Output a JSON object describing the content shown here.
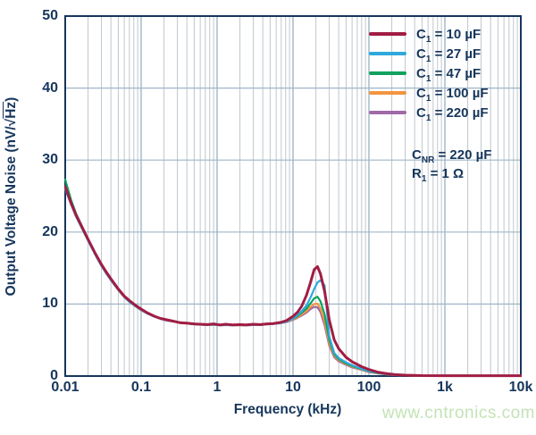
{
  "colors": {
    "text_navy": "#16365c",
    "grid_minor": "#bfc7ce",
    "grid_major": "#9fb6c8",
    "watermark_green": "#c3e3b5"
  },
  "ylabel": {
    "prefix": "Output Voltage Noise (nV/",
    "radical": "√",
    "overline": "Hz",
    "suffix": ")"
  },
  "xlabel": "Frequency (kHz)",
  "watermark": "www.cntronics.com",
  "annotation": {
    "lines": [
      {
        "base": "C",
        "sub": "NR",
        "rest": "= 220 µF"
      },
      {
        "base": "R",
        "sub": "1",
        "rest": "= 1 Ω"
      }
    ]
  },
  "chart_data": {
    "type": "line",
    "title": "",
    "xlabel": "Frequency (kHz)",
    "ylabel": "Output Voltage Noise (nV/√Hz)",
    "x_scale": "log",
    "xlim": [
      0.01,
      10000
    ],
    "ylim": [
      0,
      50
    ],
    "grid": true,
    "legend_position": "top-right",
    "x_ticks": [
      0.01,
      0.1,
      1,
      10,
      100,
      1000,
      10000
    ],
    "x_tick_labels": [
      "0.01",
      "0.1",
      "1",
      "10",
      "100",
      "1k",
      "10k"
    ],
    "y_ticks": [
      0,
      10,
      20,
      30,
      40,
      50
    ],
    "x": [
      0.01,
      0.012,
      0.014,
      0.017,
      0.02,
      0.025,
      0.03,
      0.035,
      0.04,
      0.05,
      0.06,
      0.07,
      0.085,
      0.1,
      0.12,
      0.15,
      0.18,
      0.22,
      0.27,
      0.33,
      0.4,
      0.5,
      0.6,
      0.75,
      0.9,
      1.1,
      1.3,
      1.6,
      2,
      2.4,
      3,
      3.7,
      4.5,
      5.5,
      6.8,
      8.2,
      10,
      11.5,
      13,
      15,
      17,
      19,
      21,
      23,
      26,
      30,
      35,
      40,
      50,
      60,
      80,
      100,
      130,
      170,
      220,
      300,
      500,
      1000,
      3000,
      10000
    ],
    "series": [
      {
        "name": "C1 = 10 µF",
        "base": "C",
        "sub": "1",
        "rest": "= 10 µF",
        "color": "#a11d43",
        "width": 3,
        "values": [
          26.3,
          24.0,
          22.3,
          20.5,
          19.0,
          17.0,
          15.5,
          14.4,
          13.5,
          12.1,
          11.1,
          10.5,
          9.8,
          9.3,
          8.8,
          8.3,
          8.0,
          7.8,
          7.6,
          7.4,
          7.35,
          7.25,
          7.2,
          7.15,
          7.25,
          7.1,
          7.2,
          7.1,
          7.15,
          7.1,
          7.2,
          7.15,
          7.25,
          7.3,
          7.45,
          7.7,
          8.3,
          8.9,
          9.7,
          11.2,
          13.0,
          14.8,
          15.2,
          14.2,
          11.8,
          7.8,
          5.0,
          3.8,
          2.6,
          2.0,
          1.3,
          0.9,
          0.55,
          0.35,
          0.2,
          0.12,
          0.06,
          0.05,
          0.05,
          0.05
        ]
      },
      {
        "name": "C1 = 27 µF",
        "base": "C",
        "sub": "1",
        "rest": "= 27 µF",
        "color": "#2fa9dc",
        "width": 2.2,
        "values": [
          26.0,
          23.8,
          22.1,
          20.3,
          18.8,
          16.8,
          15.3,
          14.2,
          13.3,
          12.0,
          11.0,
          10.3,
          9.7,
          9.2,
          8.7,
          8.25,
          7.95,
          7.72,
          7.55,
          7.42,
          7.3,
          7.2,
          7.15,
          7.1,
          7.15,
          7.05,
          7.1,
          7.05,
          7.1,
          7.05,
          7.1,
          7.1,
          7.2,
          7.25,
          7.35,
          7.55,
          8.0,
          8.5,
          9.0,
          9.8,
          10.9,
          12.1,
          13.0,
          13.3,
          12.6,
          5.5,
          3.2,
          2.5,
          1.9,
          1.5,
          1.0,
          0.7,
          0.45,
          0.3,
          0.18,
          0.1,
          0.05,
          0.04,
          0.04,
          0.04
        ]
      },
      {
        "name": "C1 = 47 µF",
        "base": "C",
        "sub": "1",
        "rest": "= 47 µF",
        "color": "#0ea25e",
        "width": 2.2,
        "values": [
          27.3,
          24.4,
          22.5,
          20.6,
          19.0,
          17.0,
          15.4,
          14.3,
          13.4,
          12.0,
          11.05,
          10.4,
          9.75,
          9.25,
          8.75,
          8.3,
          8.0,
          7.75,
          7.58,
          7.45,
          7.32,
          7.22,
          7.18,
          7.12,
          7.18,
          7.08,
          7.12,
          7.08,
          7.1,
          7.08,
          7.12,
          7.12,
          7.22,
          7.28,
          7.4,
          7.6,
          7.95,
          8.35,
          8.8,
          9.35,
          10.1,
          10.8,
          11.0,
          10.4,
          8.6,
          5.0,
          3.0,
          2.35,
          1.75,
          1.4,
          0.95,
          0.65,
          0.42,
          0.27,
          0.16,
          0.09,
          0.05,
          0.04,
          0.04,
          0.04
        ]
      },
      {
        "name": "C1 = 100 µF",
        "base": "C",
        "sub": "1",
        "rest": "= 100 µF",
        "color": "#f29440",
        "width": 2.2,
        "values": [
          26.1,
          23.9,
          22.2,
          20.4,
          18.9,
          16.9,
          15.35,
          14.25,
          13.35,
          12.0,
          11.0,
          10.35,
          9.7,
          9.2,
          8.72,
          8.27,
          7.97,
          7.73,
          7.56,
          7.43,
          7.31,
          7.21,
          7.16,
          7.1,
          7.16,
          7.06,
          7.1,
          7.06,
          7.08,
          7.06,
          7.1,
          7.1,
          7.2,
          7.26,
          7.36,
          7.55,
          7.85,
          8.2,
          8.55,
          9.0,
          9.6,
          10.0,
          10.05,
          9.4,
          7.6,
          4.5,
          2.8,
          2.2,
          1.65,
          1.3,
          0.9,
          0.6,
          0.4,
          0.25,
          0.15,
          0.08,
          0.05,
          0.04,
          0.04,
          0.04
        ]
      },
      {
        "name": "C1 = 220 µF",
        "base": "C",
        "sub": "1",
        "rest": "= 220 µF",
        "color": "#a06aa8",
        "width": 2.2,
        "values": [
          26.0,
          23.8,
          22.1,
          20.3,
          18.85,
          16.85,
          15.3,
          14.2,
          13.3,
          11.95,
          10.95,
          10.3,
          9.65,
          9.15,
          8.7,
          8.25,
          7.95,
          7.7,
          7.54,
          7.41,
          7.3,
          7.2,
          7.15,
          7.1,
          7.14,
          7.05,
          7.08,
          7.05,
          7.07,
          7.05,
          7.08,
          7.08,
          7.18,
          7.24,
          7.34,
          7.5,
          7.8,
          8.1,
          8.4,
          8.8,
          9.3,
          9.6,
          9.55,
          8.9,
          7.1,
          4.2,
          2.6,
          2.05,
          1.55,
          1.2,
          0.85,
          0.55,
          0.37,
          0.23,
          0.14,
          0.08,
          0.05,
          0.04,
          0.04,
          0.04
        ]
      }
    ],
    "annotations": [
      "CNR = 220 µF",
      "R1 = 1 Ω"
    ]
  }
}
